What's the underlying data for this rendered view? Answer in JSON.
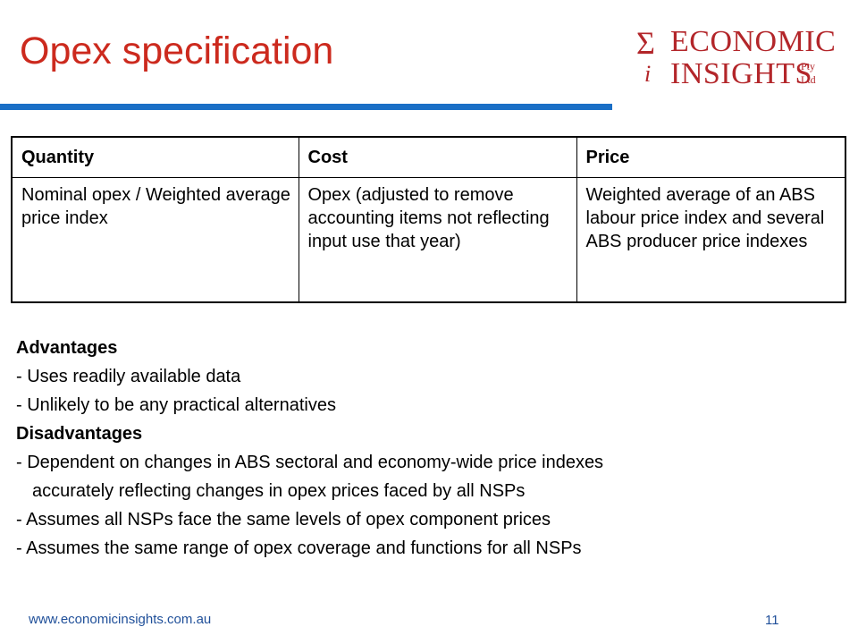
{
  "colors": {
    "title": "#cc2a1e",
    "rule": "#1a6fc6",
    "logo": "#b3262a",
    "footer": "#1f4f99"
  },
  "slide": {
    "title": "Opex specification"
  },
  "logo": {
    "sigma": "Σ",
    "i": "i",
    "line1": "ECONOMIC",
    "line2": "INSIGHTS",
    "pty": "Pty",
    "ltd": "Ltd"
  },
  "table": {
    "headers": [
      "Quantity",
      "Cost",
      "Price"
    ],
    "rows": [
      [
        "Nominal opex / Weighted average price index",
        "Opex (adjusted to remove accounting items not reflecting input use that year)",
        "Weighted average of an ABS labour price index and several ABS producer price indexes"
      ]
    ]
  },
  "body": {
    "advantages_heading": "Advantages",
    "advantages": [
      "- Uses readily available data",
      "- Unlikely to be any practical alternatives"
    ],
    "disadvantages_heading": "Disadvantages",
    "disadvantages": [
      "- Dependent on changes in ABS sectoral and economy-wide price indexes",
      "accurately reflecting changes in opex prices faced by all NSPs",
      "- Assumes all NSPs face the same levels of opex component prices",
      "- Assumes the same range of opex coverage and functions for all NSPs"
    ]
  },
  "footer": {
    "url": "www.economicinsights.com.au",
    "page_number": "11"
  }
}
